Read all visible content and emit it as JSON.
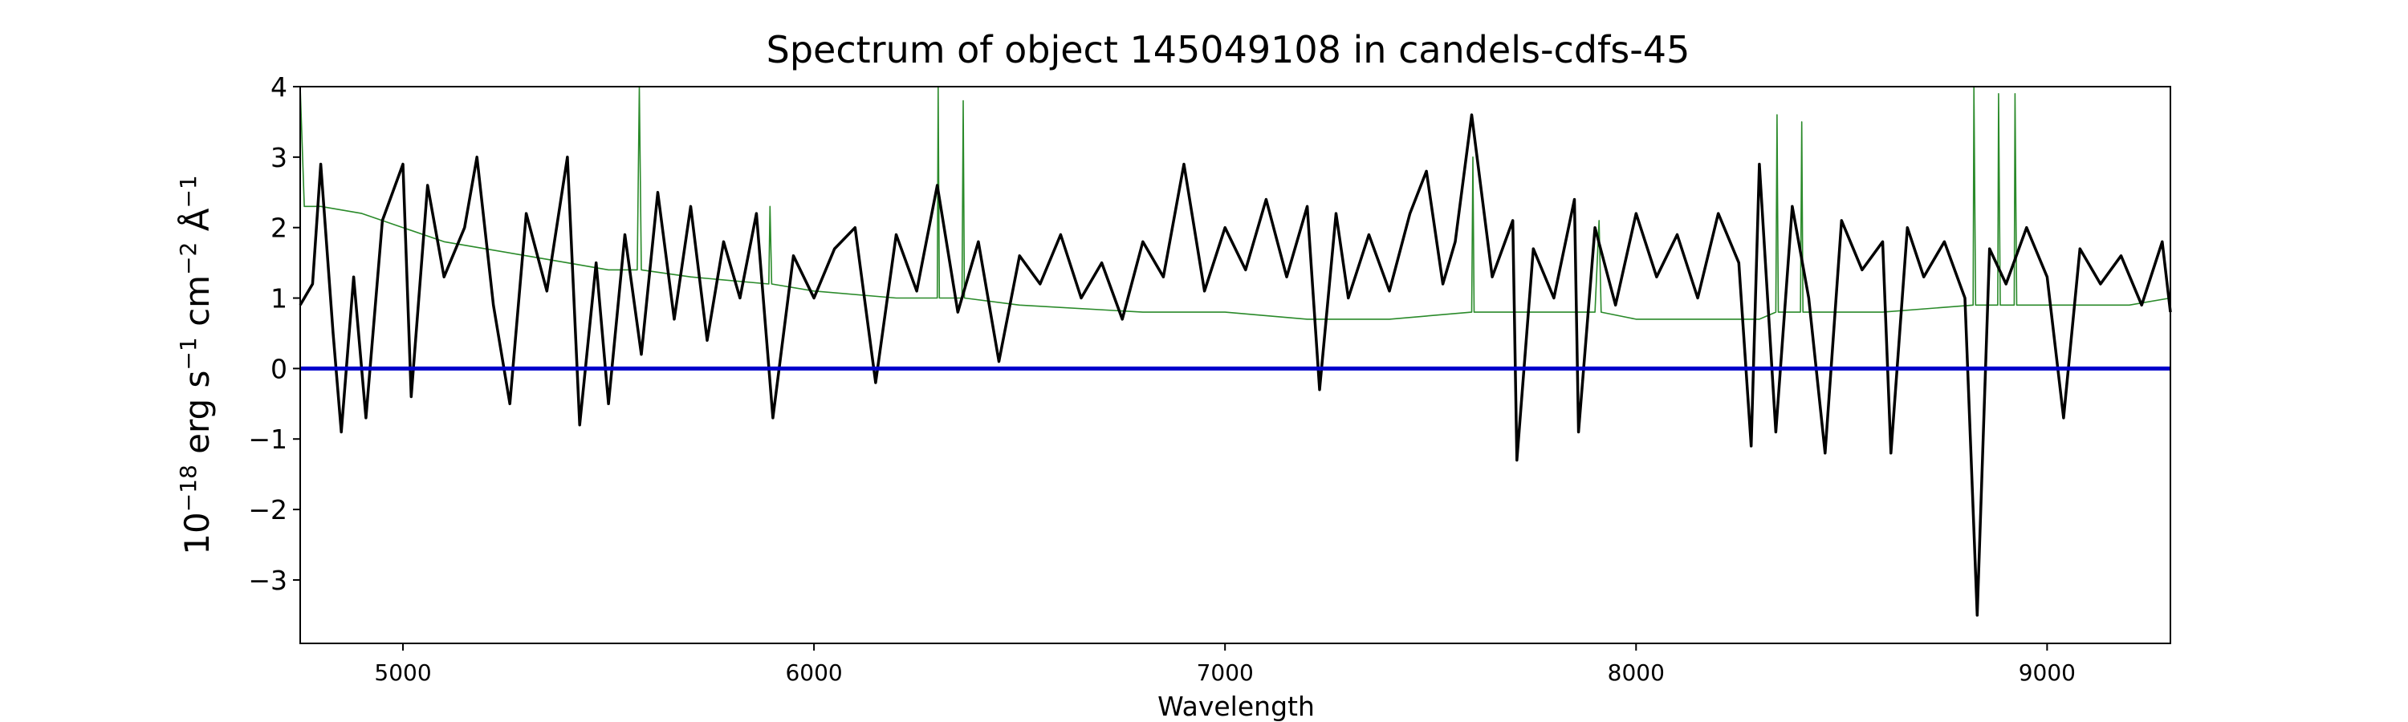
{
  "chart_data": {
    "type": "line",
    "title": "Spectrum of object 145049108 in candels-cdfs-45",
    "xlabel": "Wavelength",
    "ylabel": {
      "base": "10",
      "exp1": "−18",
      "mid1": " erg s",
      "exp2": "−1",
      "mid2": " cm",
      "exp3": "−2",
      "mid3": " Å",
      "exp4": "−1"
    },
    "xlim": [
      4750,
      9300
    ],
    "ylim": [
      -3.9,
      4.0
    ],
    "x_ticks": [
      5000,
      6000,
      7000,
      8000,
      9000
    ],
    "x_tick_labels": [
      "5000",
      "6000",
      "7000",
      "8000",
      "9000"
    ],
    "y_ticks": [
      -3,
      -2,
      -1,
      0,
      1,
      2,
      3,
      4
    ],
    "y_tick_labels": [
      "−3",
      "−2",
      "−1",
      "0",
      "1",
      "2",
      "3",
      "4"
    ],
    "grid": false,
    "series_colors": {
      "flux": "#000000",
      "noise": "#2a8a2a",
      "zero": "#0000cc"
    },
    "series": [
      {
        "role": "flux",
        "points": [
          [
            4750,
            0.9
          ],
          [
            4780,
            1.2
          ],
          [
            4800,
            2.9
          ],
          [
            4830,
            0.5
          ],
          [
            4850,
            -0.9
          ],
          [
            4880,
            1.3
          ],
          [
            4910,
            -0.7
          ],
          [
            4950,
            2.1
          ],
          [
            5000,
            2.9
          ],
          [
            5020,
            -0.4
          ],
          [
            5060,
            2.6
          ],
          [
            5100,
            1.3
          ],
          [
            5150,
            2.0
          ],
          [
            5180,
            3.0
          ],
          [
            5220,
            0.9
          ],
          [
            5260,
            -0.5
          ],
          [
            5300,
            2.2
          ],
          [
            5350,
            1.1
          ],
          [
            5400,
            3.0
          ],
          [
            5430,
            -0.8
          ],
          [
            5470,
            1.5
          ],
          [
            5500,
            -0.5
          ],
          [
            5540,
            1.9
          ],
          [
            5580,
            0.2
          ],
          [
            5620,
            2.5
          ],
          [
            5660,
            0.7
          ],
          [
            5700,
            2.3
          ],
          [
            5740,
            0.4
          ],
          [
            5780,
            1.8
          ],
          [
            5820,
            1.0
          ],
          [
            5860,
            2.2
          ],
          [
            5900,
            -0.7
          ],
          [
            5950,
            1.6
          ],
          [
            6000,
            1.0
          ],
          [
            6050,
            1.7
          ],
          [
            6100,
            2.0
          ],
          [
            6150,
            -0.2
          ],
          [
            6200,
            1.9
          ],
          [
            6250,
            1.1
          ],
          [
            6300,
            2.6
          ],
          [
            6350,
            0.8
          ],
          [
            6400,
            1.8
          ],
          [
            6450,
            0.1
          ],
          [
            6500,
            1.6
          ],
          [
            6550,
            1.2
          ],
          [
            6600,
            1.9
          ],
          [
            6650,
            1.0
          ],
          [
            6700,
            1.5
          ],
          [
            6750,
            0.7
          ],
          [
            6800,
            1.8
          ],
          [
            6850,
            1.3
          ],
          [
            6900,
            2.9
          ],
          [
            6950,
            1.1
          ],
          [
            7000,
            2.0
          ],
          [
            7050,
            1.4
          ],
          [
            7100,
            2.4
          ],
          [
            7150,
            1.3
          ],
          [
            7200,
            2.3
          ],
          [
            7230,
            -0.3
          ],
          [
            7270,
            2.2
          ],
          [
            7300,
            1.0
          ],
          [
            7350,
            1.9
          ],
          [
            7400,
            1.1
          ],
          [
            7450,
            2.2
          ],
          [
            7490,
            2.8
          ],
          [
            7530,
            1.2
          ],
          [
            7560,
            1.8
          ],
          [
            7600,
            3.6
          ],
          [
            7650,
            1.3
          ],
          [
            7700,
            2.1
          ],
          [
            7710,
            -1.3
          ],
          [
            7750,
            1.7
          ],
          [
            7800,
            1.0
          ],
          [
            7850,
            2.4
          ],
          [
            7860,
            -0.9
          ],
          [
            7900,
            2.0
          ],
          [
            7950,
            0.9
          ],
          [
            8000,
            2.2
          ],
          [
            8050,
            1.3
          ],
          [
            8100,
            1.9
          ],
          [
            8150,
            1.0
          ],
          [
            8200,
            2.2
          ],
          [
            8250,
            1.5
          ],
          [
            8280,
            -1.1
          ],
          [
            8300,
            2.9
          ],
          [
            8340,
            -0.9
          ],
          [
            8380,
            2.3
          ],
          [
            8420,
            1.0
          ],
          [
            8460,
            -1.2
          ],
          [
            8500,
            2.1
          ],
          [
            8550,
            1.4
          ],
          [
            8600,
            1.8
          ],
          [
            8620,
            -1.2
          ],
          [
            8660,
            2.0
          ],
          [
            8700,
            1.3
          ],
          [
            8750,
            1.8
          ],
          [
            8800,
            1.0
          ],
          [
            8830,
            -3.5
          ],
          [
            8860,
            1.7
          ],
          [
            8900,
            1.2
          ],
          [
            8950,
            2.0
          ],
          [
            9000,
            1.3
          ],
          [
            9040,
            -0.7
          ],
          [
            9080,
            1.7
          ],
          [
            9130,
            1.2
          ],
          [
            9180,
            1.6
          ],
          [
            9230,
            0.9
          ],
          [
            9280,
            1.8
          ],
          [
            9300,
            0.8
          ]
        ]
      },
      {
        "role": "noise",
        "points": [
          [
            4750,
            4.0
          ],
          [
            4760,
            2.3
          ],
          [
            4800,
            2.3
          ],
          [
            4900,
            2.2
          ],
          [
            5000,
            2.0
          ],
          [
            5100,
            1.8
          ],
          [
            5200,
            1.7
          ],
          [
            5300,
            1.6
          ],
          [
            5400,
            1.5
          ],
          [
            5500,
            1.4
          ],
          [
            5570,
            1.4
          ],
          [
            5575,
            4.0
          ],
          [
            5580,
            1.4
          ],
          [
            5700,
            1.3
          ],
          [
            5890,
            1.2
          ],
          [
            5893,
            2.3
          ],
          [
            5897,
            1.2
          ],
          [
            6000,
            1.1
          ],
          [
            6200,
            1.0
          ],
          [
            6300,
            1.0
          ],
          [
            6302,
            4.0
          ],
          [
            6305,
            1.0
          ],
          [
            6360,
            1.0
          ],
          [
            6363,
            3.8
          ],
          [
            6366,
            1.0
          ],
          [
            6500,
            0.9
          ],
          [
            6800,
            0.8
          ],
          [
            7000,
            0.8
          ],
          [
            7200,
            0.7
          ],
          [
            7400,
            0.7
          ],
          [
            7600,
            0.8
          ],
          [
            7603,
            3.0
          ],
          [
            7606,
            0.8
          ],
          [
            7800,
            0.8
          ],
          [
            7900,
            0.8
          ],
          [
            7910,
            2.1
          ],
          [
            7915,
            0.8
          ],
          [
            8000,
            0.7
          ],
          [
            8300,
            0.7
          ],
          [
            8340,
            0.8
          ],
          [
            8343,
            3.6
          ],
          [
            8346,
            0.8
          ],
          [
            8400,
            0.8
          ],
          [
            8403,
            3.5
          ],
          [
            8406,
            0.8
          ],
          [
            8600,
            0.8
          ],
          [
            8820,
            0.9
          ],
          [
            8822,
            4.0
          ],
          [
            8826,
            0.9
          ],
          [
            8880,
            0.9
          ],
          [
            8882,
            3.9
          ],
          [
            8886,
            0.9
          ],
          [
            8920,
            0.9
          ],
          [
            8922,
            3.9
          ],
          [
            8926,
            0.9
          ],
          [
            9000,
            0.9
          ],
          [
            9200,
            0.9
          ],
          [
            9300,
            1.0
          ]
        ]
      },
      {
        "role": "zero",
        "points": [
          [
            4750,
            0
          ],
          [
            9300,
            0
          ]
        ]
      }
    ]
  }
}
